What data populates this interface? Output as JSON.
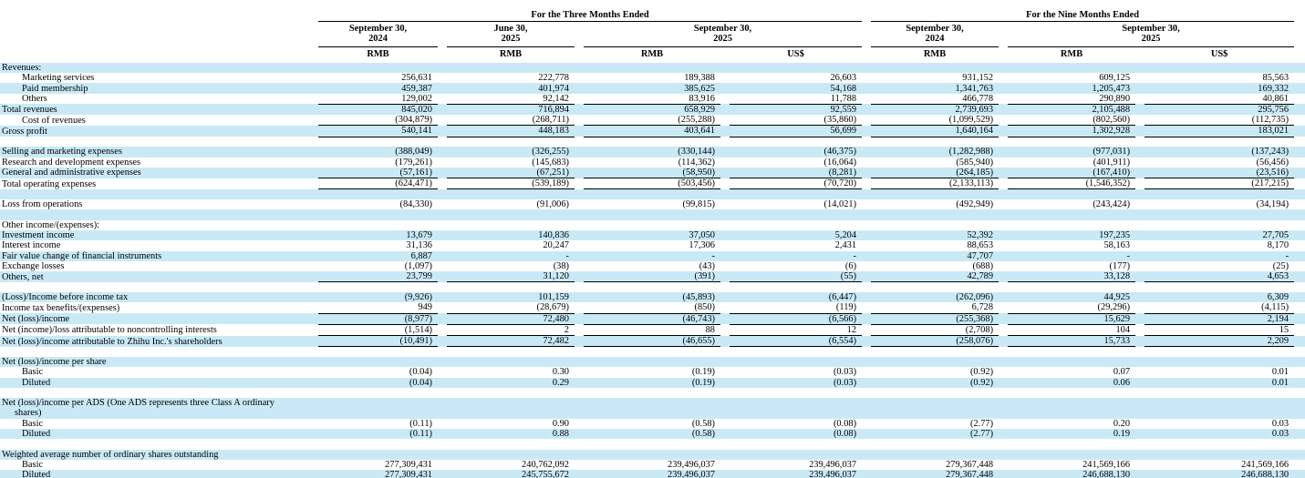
{
  "colors": {
    "row_highlight": "#c9e9f7",
    "border": "#000000",
    "text": "#000000"
  },
  "header": {
    "groups": [
      {
        "title": "For the Three Months Ended"
      },
      {
        "title": "For the Nine Months Ended"
      }
    ],
    "periods": [
      {
        "line1": "September 30,",
        "line2": "2024"
      },
      {
        "line1": "June 30,",
        "line2": "2025"
      },
      {
        "line1": "September 30,",
        "line2": "2025"
      },
      {
        "line1": "September 30,",
        "line2": "2024"
      },
      {
        "line1": "September 30,",
        "line2": "2025"
      }
    ],
    "units": [
      "RMB",
      "RMB",
      "RMB",
      "US$",
      "RMB",
      "RMB",
      "US$"
    ]
  },
  "rows": [
    {
      "label": "Revenues:",
      "bold": true,
      "bg": "blue"
    },
    {
      "label": "Marketing services",
      "indent": true,
      "bg": "white",
      "values": [
        "256,631",
        "222,778",
        "189,388",
        "26,603",
        "931,152",
        "609,125",
        "85,563"
      ]
    },
    {
      "label": "Paid membership",
      "indent": true,
      "bg": "blue",
      "values": [
        "459,387",
        "401,974",
        "385,625",
        "54,168",
        "1,341,763",
        "1,205,473",
        "169,332"
      ]
    },
    {
      "label": "Others",
      "indent": true,
      "bg": "white",
      "ul": true,
      "values": [
        "129,002",
        "92,142",
        "83,916",
        "11,788",
        "466,778",
        "290,890",
        "40,861"
      ]
    },
    {
      "label": "Total revenues",
      "bold": true,
      "bg": "blue",
      "values": [
        "845,020",
        "716,894",
        "658,929",
        "92,559",
        "2,739,693",
        "2,105,488",
        "295,756"
      ]
    },
    {
      "label": "Cost of revenues",
      "indent": true,
      "bg": "white",
      "ul": true,
      "values": [
        "(304,879)",
        "(268,711)",
        "(255,288)",
        "(35,860)",
        "(1,099,529)",
        "(802,560)",
        "(112,735)"
      ]
    },
    {
      "label": "Gross profit",
      "bold": true,
      "bg": "blue",
      "ul": true,
      "values": [
        "540,141",
        "448,183",
        "403,641",
        "56,699",
        "1,640,164",
        "1,302,928",
        "183,021"
      ]
    },
    {
      "blank": true,
      "bg": "white"
    },
    {
      "label": "Selling and marketing expenses",
      "bg": "blue",
      "values": [
        "(388,049)",
        "(326,255)",
        "(330,144)",
        "(46,375)",
        "(1,282,988)",
        "(977,031)",
        "(137,243)"
      ]
    },
    {
      "label": "Research and development expenses",
      "bg": "white",
      "values": [
        "(179,261)",
        "(145,683)",
        "(114,362)",
        "(16,064)",
        "(585,940)",
        "(401,911)",
        "(56,456)"
      ]
    },
    {
      "label": "General and administrative expenses",
      "bg": "blue",
      "ul": true,
      "values": [
        "(57,161)",
        "(67,251)",
        "(58,950)",
        "(8,281)",
        "(264,185)",
        "(167,410)",
        "(23,516)"
      ]
    },
    {
      "label": "Total operating expenses",
      "bold": true,
      "bg": "white",
      "ul": true,
      "values": [
        "(624,471)",
        "(539,189)",
        "(503,456)",
        "(70,720)",
        "(2,133,113)",
        "(1,546,352)",
        "(217,215)"
      ]
    },
    {
      "blank": true,
      "bg": "blue"
    },
    {
      "label": "Loss from operations",
      "bold": true,
      "bg": "white",
      "values": [
        "(84,330)",
        "(91,006)",
        "(99,815)",
        "(14,021)",
        "(492,949)",
        "(243,424)",
        "(34,194)"
      ]
    },
    {
      "blank": true,
      "bg": "blue"
    },
    {
      "label": "Other income/(expenses):",
      "bold": true,
      "bg": "white"
    },
    {
      "label": "Investment income",
      "bg": "blue",
      "values": [
        "13,679",
        "140,836",
        "37,050",
        "5,204",
        "52,392",
        "197,235",
        "27,705"
      ]
    },
    {
      "label": "Interest income",
      "bg": "white",
      "values": [
        "31,136",
        "20,247",
        "17,306",
        "2,431",
        "88,653",
        "58,163",
        "8,170"
      ]
    },
    {
      "label": "Fair value change of financial instruments",
      "bg": "blue",
      "values": [
        "6,887",
        "-",
        "-",
        "-",
        "47,707",
        "-",
        "-"
      ]
    },
    {
      "label": "Exchange losses",
      "bg": "white",
      "values": [
        "(1,097)",
        "(38)",
        "(43)",
        "(6)",
        "(688)",
        "(177)",
        "(25)"
      ]
    },
    {
      "label": "Others, net",
      "bg": "blue",
      "ul": true,
      "values": [
        "23,799",
        "31,120",
        "(391)",
        "(55)",
        "42,789",
        "33,128",
        "4,653"
      ]
    },
    {
      "blank": true,
      "bg": "white"
    },
    {
      "label": "(Loss)/Income before income tax",
      "bold": true,
      "bg": "blue",
      "values": [
        "(9,926)",
        "101,159",
        "(45,893)",
        "(6,447)",
        "(262,096)",
        "44,925",
        "6,309"
      ]
    },
    {
      "label": "Income tax benefits/(expenses)",
      "bg": "white",
      "ul": true,
      "values": [
        "949",
        "(28,679)",
        "(850)",
        "(119)",
        "6,728",
        "(29,296)",
        "(4,115)"
      ]
    },
    {
      "label": "Net (loss)/income",
      "bold": true,
      "bg": "blue",
      "ul": true,
      "values": [
        "(8,977)",
        "72,480",
        "(46,743)",
        "(6,566)",
        "(255,368)",
        "15,629",
        "2,194"
      ]
    },
    {
      "label": "Net (income)/loss attributable to noncontrolling interests",
      "bg": "white",
      "ul": true,
      "values": [
        "(1,514)",
        "2",
        "88",
        "12",
        "(2,708)",
        "104",
        "15"
      ]
    },
    {
      "label": "Net (loss)/income attributable to Zhihu Inc.'s shareholders",
      "bold": true,
      "bg": "blue",
      "ul": true,
      "values": [
        "(10,491)",
        "72,482",
        "(46,655)",
        "(6,554)",
        "(258,076)",
        "15,733",
        "2,209"
      ]
    },
    {
      "blank": true,
      "bg": "white"
    },
    {
      "label": "Net (loss)/income per share",
      "bold": true,
      "bg": "blue"
    },
    {
      "label": "Basic",
      "indent": true,
      "bg": "white",
      "values": [
        "(0.04)",
        "0.30",
        "(0.19)",
        "(0.03)",
        "(0.92)",
        "0.07",
        "0.01"
      ]
    },
    {
      "label": "Diluted",
      "indent": true,
      "bg": "blue",
      "values": [
        "(0.04)",
        "0.29",
        "(0.19)",
        "(0.03)",
        "(0.92)",
        "0.06",
        "0.01"
      ]
    },
    {
      "blank": true,
      "bg": "white"
    },
    {
      "label": "Net (loss)/income per ADS (One ADS represents three Class A ordinary",
      "label2": "shares)",
      "bold": true,
      "bg": "blue",
      "hang": true
    },
    {
      "label": "Basic",
      "indent": true,
      "bg": "white",
      "values": [
        "(0.11)",
        "0.90",
        "(0.58)",
        "(0.08)",
        "(2.77)",
        "0.20",
        "0.03"
      ]
    },
    {
      "label": "Diluted",
      "indent": true,
      "bg": "blue",
      "values": [
        "(0.11)",
        "0.88",
        "(0.58)",
        "(0.08)",
        "(2.77)",
        "0.19",
        "0.03"
      ]
    },
    {
      "blank": true,
      "bg": "white"
    },
    {
      "label": "Weighted average number of ordinary shares outstanding",
      "bold": true,
      "bg": "blue"
    },
    {
      "label": "Basic",
      "indent": true,
      "bg": "white",
      "values": [
        "277,309,431",
        "240,762,092",
        "239,496,037",
        "239,496,037",
        "279,367,448",
        "241,569,166",
        "241,569,166"
      ]
    },
    {
      "label": "Diluted",
      "indent": true,
      "bg": "blue",
      "values": [
        "277,309,431",
        "245,755,672",
        "239,496,037",
        "239,496,037",
        "279,367,448",
        "246,688,130",
        "246,688,130"
      ]
    }
  ]
}
